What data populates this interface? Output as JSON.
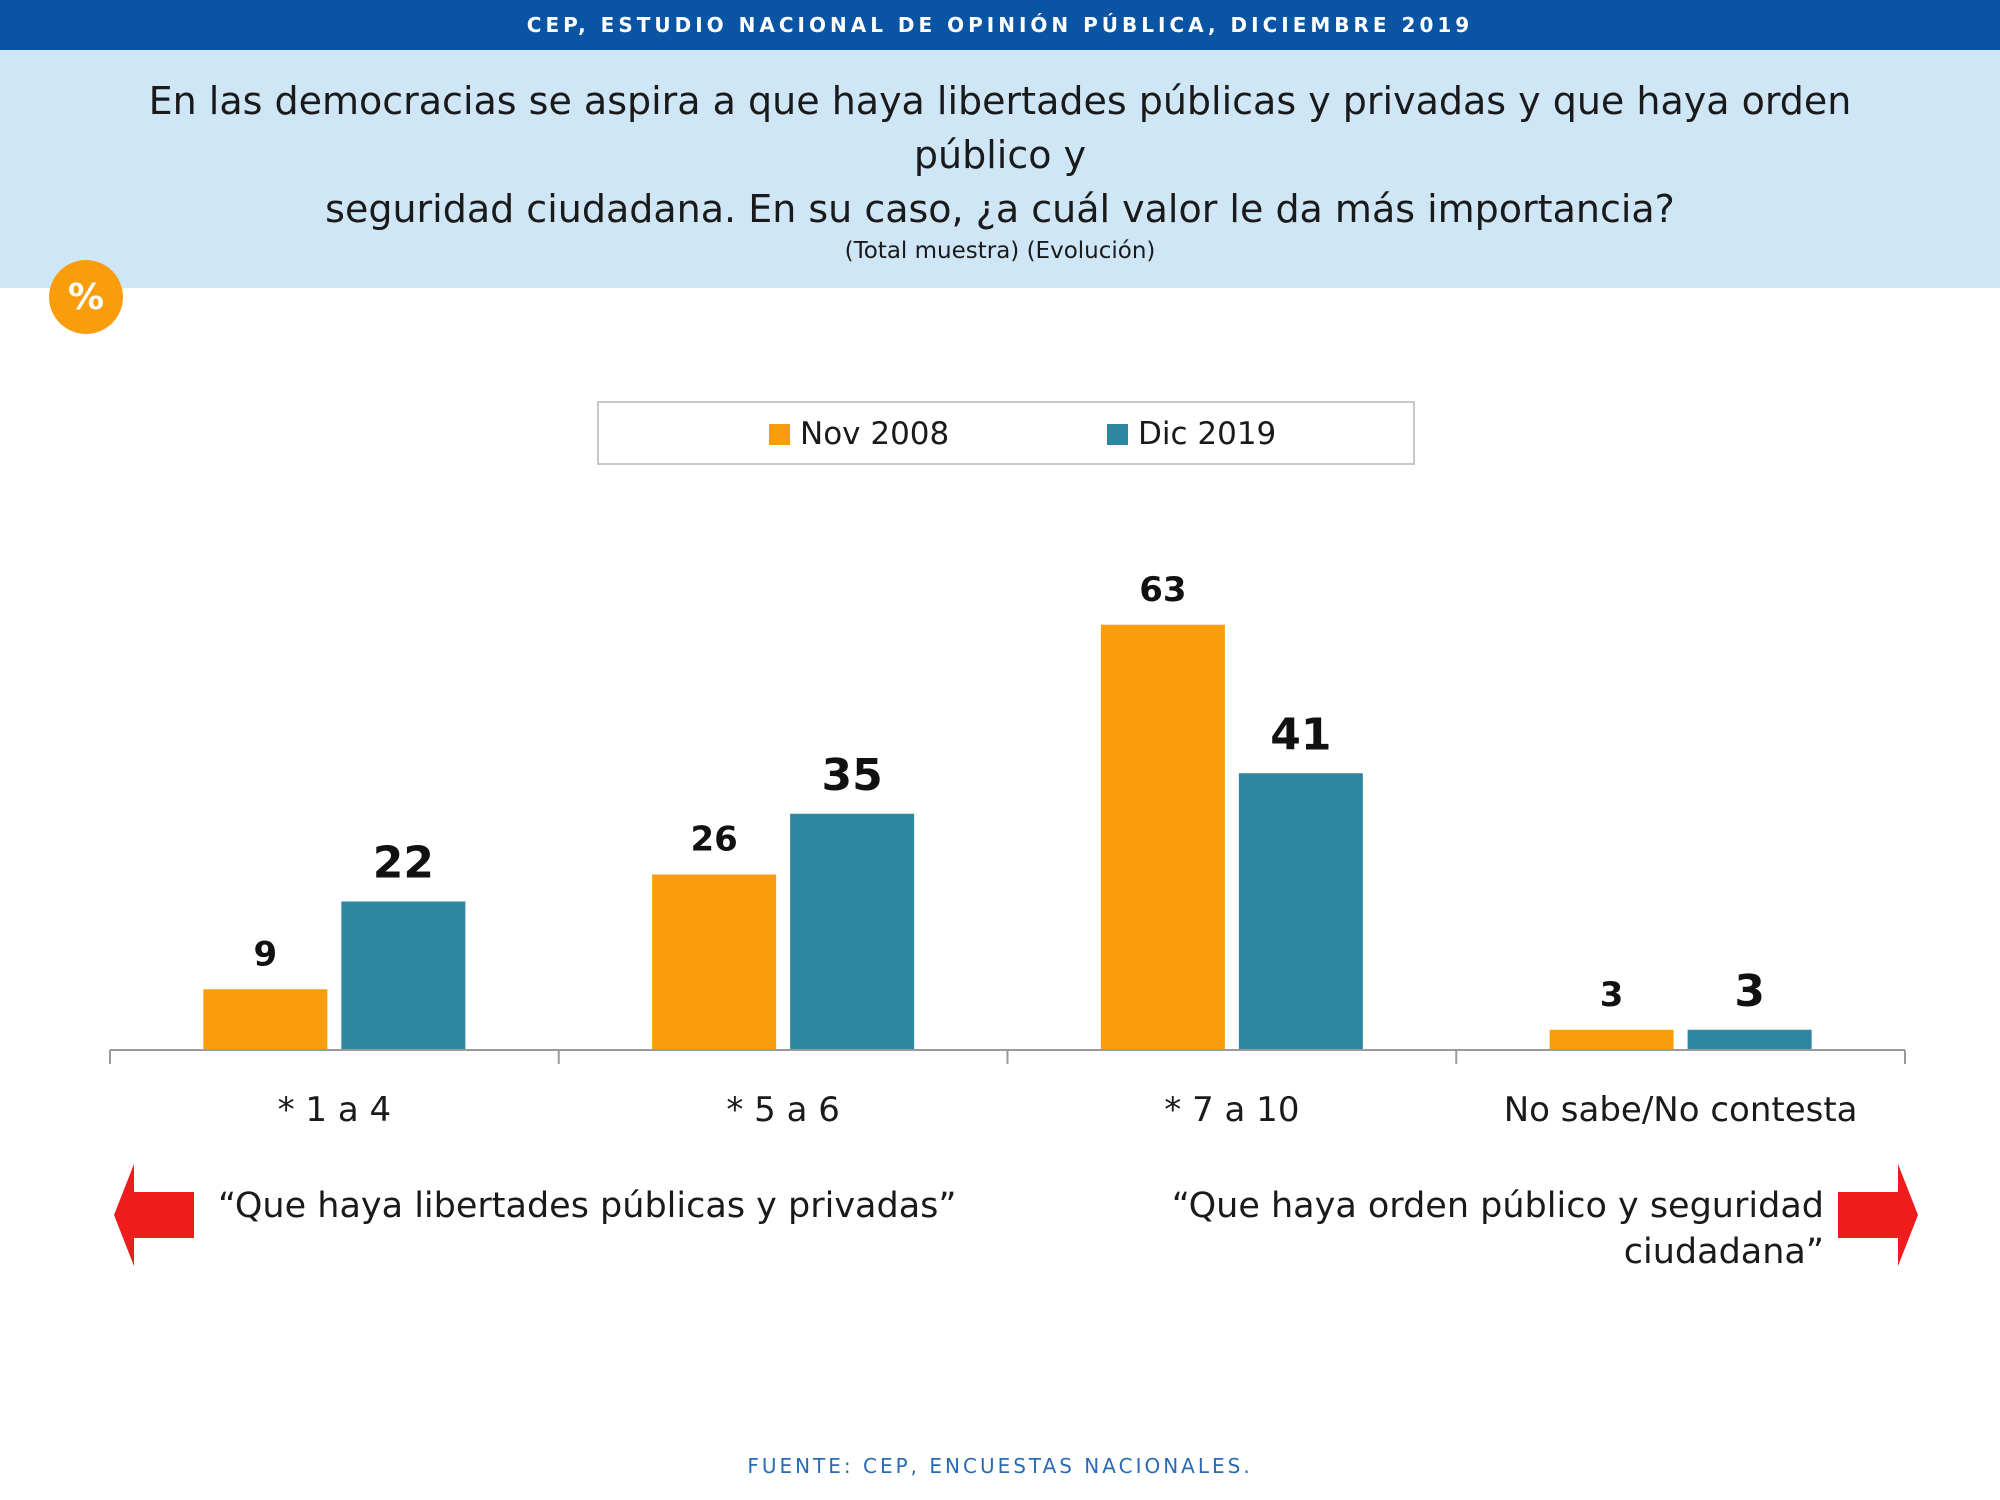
{
  "header": {
    "banner": "CEP, ESTUDIO NACIONAL DE OPINIÓN PÚBLICA, DICIEMBRE 2019",
    "question_line1": "En las democracias se aspira a que haya libertades públicas y privadas y que haya orden público y",
    "question_line2": "seguridad ciudadana. En su caso, ¿a cuál valor le da más importancia?",
    "subtitle": "(Total muestra) (Evolución)",
    "badge": "%"
  },
  "colors": {
    "banner": "#0a54a4",
    "panel": "#cfe6f6",
    "badge": "#f99d0d",
    "arrow": "#ee1c1c",
    "source": "#2a6cb3"
  },
  "chart_data": {
    "type": "bar",
    "categories": [
      "* 1 a 4",
      "* 5 a 6",
      "* 7 a 10",
      "No sabe/No contesta"
    ],
    "series": [
      {
        "name": "Nov 2008",
        "values": [
          9,
          26,
          63,
          3
        ],
        "color": "#f99d0d"
      },
      {
        "name": "Dic 2019",
        "values": [
          22,
          35,
          41,
          3
        ],
        "color": "#2f86a0"
      }
    ],
    "ylim": [
      0,
      70
    ],
    "grid": false,
    "legend_position": "top-center",
    "data_labels": true
  },
  "annotations": {
    "left": "“Que haya libertades públicas y privadas”",
    "right_line1": "“Que haya orden público y seguridad",
    "right_line2": "ciudadana”",
    "left_arrow_icon": "arrow-left-icon",
    "right_arrow_icon": "arrow-right-icon"
  },
  "footer": {
    "source": "FUENTE: CEP, ENCUESTAS NACIONALES."
  }
}
